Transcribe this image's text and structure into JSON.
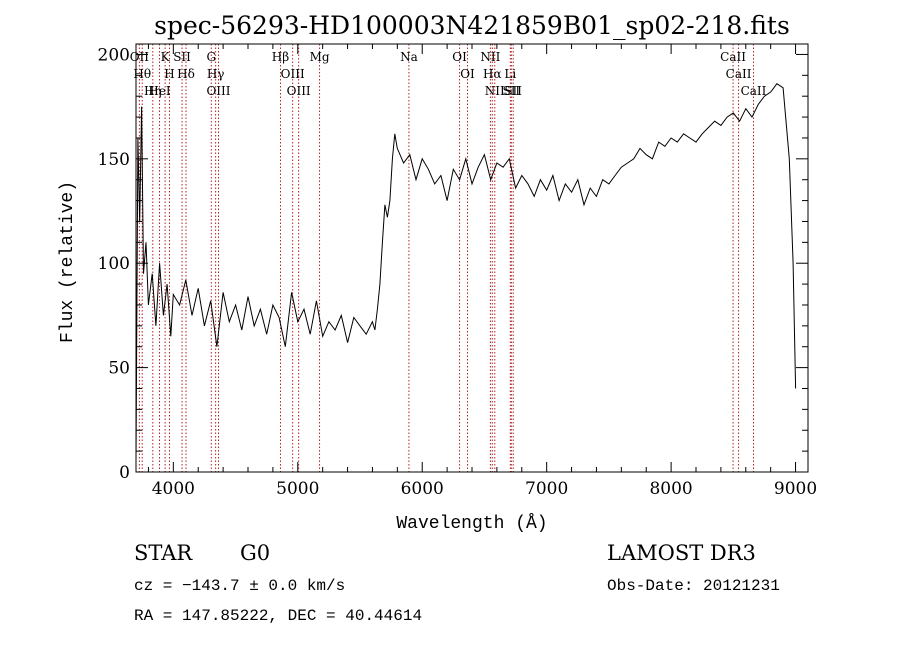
{
  "chart_data": {
    "type": "line",
    "title": "spec-56293-HD100003N421859B01_sp02-218.fits",
    "xlabel": "Wavelength (Å)",
    "ylabel": "Flux (relative)",
    "xlim": [
      3700,
      9100
    ],
    "ylim": [
      0,
      205
    ],
    "x_ticks": [
      4000,
      5000,
      6000,
      7000,
      8000,
      9000
    ],
    "x_tick_labels": [
      "4000",
      "5000",
      "6000",
      "7000",
      "8000",
      "9000"
    ],
    "y_ticks": [
      0,
      50,
      100,
      150,
      200
    ],
    "y_tick_labels": [
      "0",
      "50",
      "100",
      "150",
      "200"
    ],
    "grid": false,
    "series": [
      {
        "x": [
          3700,
          3715,
          3730,
          3745,
          3760,
          3780,
          3800,
          3830,
          3860,
          3890,
          3920,
          3950,
          3980,
          4000,
          4050,
          4100,
          4150,
          4200,
          4250,
          4300,
          4350,
          4400,
          4450,
          4500,
          4550,
          4600,
          4650,
          4700,
          4750,
          4800,
          4850,
          4900,
          4950,
          5000,
          5050,
          5100,
          5150,
          5200,
          5250,
          5300,
          5350,
          5400,
          5450,
          5500,
          5550,
          5600,
          5620,
          5640,
          5660,
          5680,
          5700,
          5720,
          5740,
          5760,
          5780,
          5800,
          5850,
          5900,
          5950,
          6000,
          6050,
          6100,
          6150,
          6200,
          6250,
          6300,
          6350,
          6400,
          6450,
          6500,
          6550,
          6600,
          6650,
          6700,
          6750,
          6800,
          6850,
          6900,
          6950,
          7000,
          7050,
          7100,
          7150,
          7200,
          7250,
          7300,
          7350,
          7400,
          7450,
          7500,
          7550,
          7600,
          7650,
          7700,
          7750,
          7800,
          7850,
          7900,
          7950,
          8000,
          8050,
          8100,
          8150,
          8200,
          8250,
          8300,
          8350,
          8400,
          8450,
          8500,
          8550,
          8600,
          8650,
          8700,
          8750,
          8800,
          8850,
          8900,
          8950,
          8980,
          9000
        ],
        "y": [
          5,
          160,
          120,
          175,
          95,
          110,
          80,
          95,
          70,
          100,
          75,
          90,
          65,
          85,
          80,
          92,
          75,
          88,
          70,
          82,
          60,
          86,
          72,
          80,
          68,
          84,
          70,
          78,
          66,
          80,
          74,
          60,
          86,
          72,
          78,
          66,
          82,
          65,
          72,
          68,
          75,
          62,
          74,
          70,
          66,
          72,
          68,
          78,
          90,
          110,
          128,
          122,
          130,
          150,
          162,
          155,
          148,
          152,
          140,
          150,
          145,
          138,
          142,
          130,
          145,
          140,
          150,
          138,
          146,
          152,
          140,
          148,
          146,
          150,
          136,
          142,
          138,
          132,
          140,
          135,
          142,
          130,
          138,
          134,
          140,
          128,
          136,
          132,
          140,
          138,
          142,
          146,
          148,
          150,
          155,
          152,
          150,
          158,
          156,
          160,
          158,
          162,
          160,
          158,
          162,
          165,
          168,
          166,
          170,
          172,
          168,
          174,
          170,
          176,
          180,
          182,
          186,
          184,
          150,
          100,
          40
        ]
      }
    ],
    "line_markers": [
      {
        "label": "OII",
        "wavelength": 3727
      },
      {
        "label": "Hθ",
        "wavelength": 3750
      },
      {
        "label": "Hη",
        "wavelength": 3835
      },
      {
        "label": "HeI",
        "wavelength": 3889
      },
      {
        "label": "K",
        "wavelength": 3934
      },
      {
        "label": "SII",
        "wavelength": 4070
      },
      {
        "label": "H",
        "wavelength": 3969
      },
      {
        "label": "Hδ",
        "wavelength": 4102
      },
      {
        "label": "OIII",
        "wavelength": 4363
      },
      {
        "label": "Hγ",
        "wavelength": 4340
      },
      {
        "label": "G",
        "wavelength": 4305
      },
      {
        "label": "Hβ",
        "wavelength": 4861
      },
      {
        "label": "OIII",
        "wavelength": 4959
      },
      {
        "label": "OIII",
        "wavelength": 5007
      },
      {
        "label": "Mg",
        "wavelength": 5175
      },
      {
        "label": "Na",
        "wavelength": 5893
      },
      {
        "label": "OI",
        "wavelength": 6300
      },
      {
        "label": "OI",
        "wavelength": 6364
      },
      {
        "label": "NII",
        "wavelength": 6548
      },
      {
        "label": "Hα",
        "wavelength": 6563
      },
      {
        "label": "NII",
        "wavelength": 6583
      },
      {
        "label": "SII",
        "wavelength": 6716
      },
      {
        "label": "Li",
        "wavelength": 6708
      },
      {
        "label": "SII",
        "wavelength": 6731
      },
      {
        "label": "CaII",
        "wavelength": 8498
      },
      {
        "label": "CaII",
        "wavelength": 8542
      },
      {
        "label": "CaII",
        "wavelength": 8662
      }
    ]
  },
  "info": {
    "object_class": "STAR",
    "subclass": "G0",
    "survey": "LAMOST DR3",
    "cz": "cz = −143.7 ± 0.0 km/s",
    "obs_date": "Obs-Date: 20121231",
    "coords": "RA = 147.85222, DEC =  40.44614"
  },
  "colors": {
    "spectrum": "#000000",
    "marker": "#b22222",
    "axes": "#000000"
  }
}
